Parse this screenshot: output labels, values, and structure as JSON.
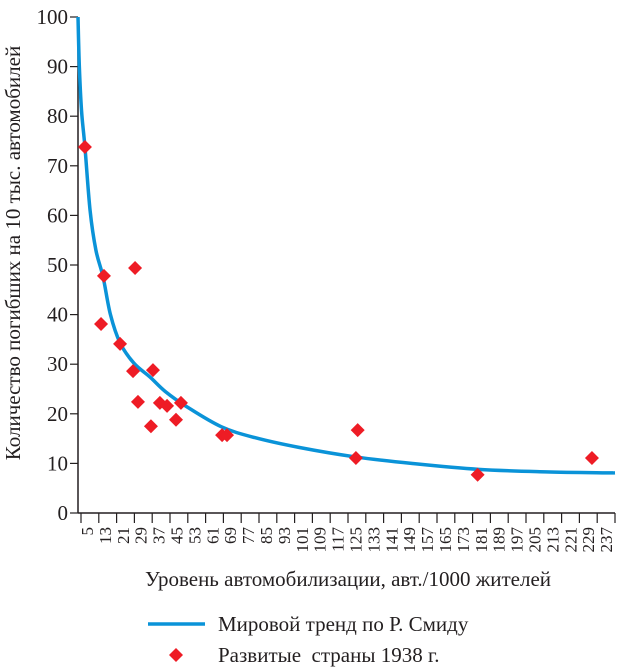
{
  "chart_data": {
    "type": "scatter",
    "title": "",
    "xlabel": "Уровень автомобилизации, авт./1000 жителей",
    "ylabel": "Количество погибших на 10 тыс. автомобилей",
    "xlim": [
      1,
      241
    ],
    "ylim": [
      0,
      100
    ],
    "yticks": [
      0,
      10,
      20,
      30,
      40,
      50,
      60,
      70,
      80,
      90,
      100
    ],
    "xticks": [
      5,
      13,
      21,
      29,
      37,
      45,
      53,
      61,
      69,
      77,
      85,
      93,
      101,
      109,
      117,
      125,
      133,
      141,
      149,
      157,
      165,
      173,
      181,
      189,
      197,
      205,
      213,
      221,
      229,
      237
    ],
    "grid": false,
    "legend_placement": "bottom",
    "series": [
      {
        "name": "Мировой тренд по Р. Смиду",
        "type": "line",
        "color": "#0a93d8",
        "x": [
          1,
          1.6,
          2.6,
          4.1,
          6.4,
          9,
          12.2,
          15.5,
          19.8,
          26,
          33.2,
          40,
          49.7,
          65,
          80,
          100,
          125,
          150,
          180,
          210,
          237,
          241
        ],
        "y": [
          100,
          90,
          81,
          73.8,
          61,
          53,
          47.6,
          40,
          34.3,
          30.2,
          27.4,
          24.5,
          21.4,
          17.4,
          15.2,
          13.2,
          11.3,
          10,
          8.8,
          8.3,
          8.1,
          8.1
        ]
      },
      {
        "name": "Развитые  страны 1938 г.",
        "type": "scatter",
        "marker": "diamond",
        "color": "#ee1c25",
        "x": [
          4.1,
          11.3,
          12.6,
          19.8,
          25.6,
          26.5,
          27.8,
          33.6,
          34.5,
          37.6,
          40.8,
          44.8,
          47,
          65.4,
          67.6,
          125.2,
          126,
          179.6,
          230.7
        ],
        "y": [
          73.8,
          38.1,
          47.8,
          34.1,
          28.6,
          49.4,
          22.4,
          17.5,
          28.8,
          22.2,
          21.6,
          18.8,
          22.2,
          15.7,
          15.7,
          11.1,
          16.7,
          7.7,
          11.1
        ]
      }
    ]
  }
}
